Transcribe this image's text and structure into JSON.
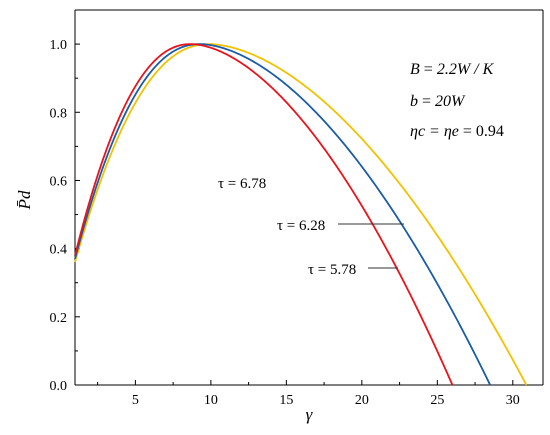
{
  "chart_data": {
    "type": "line",
    "xlabel": "γ",
    "ylabel": "P̄d",
    "xlim": [
      1,
      32
    ],
    "ylim": [
      0,
      1.1
    ],
    "x_ticks": [
      5,
      10,
      15,
      20,
      25,
      30
    ],
    "y_ticks": [
      0.0,
      0.2,
      0.4,
      0.6,
      0.8,
      1.0
    ],
    "x_tick_labels": [
      "5",
      "10",
      "15",
      "20",
      "25",
      "30"
    ],
    "y_tick_labels": [
      "0.0",
      "0.2",
      "0.4",
      "0.6",
      "0.8",
      "1.0"
    ],
    "grid": false,
    "parameters": [
      {
        "lhs": "B",
        "rhs": "2.2W / K"
      },
      {
        "lhs": "b",
        "rhs": "20W"
      },
      {
        "lhs": "ηc = ηe",
        "rhs": "0.94"
      }
    ],
    "series": [
      {
        "name": "τ = 5.78",
        "color": "#e8141c",
        "peak_x": 8.7,
        "zero_x": 26.0,
        "start_y": 0.38
      },
      {
        "name": "τ = 6.28",
        "color": "#1a5ca8",
        "peak_x": 9.3,
        "zero_x": 28.5,
        "start_y": 0.37
      },
      {
        "name": "τ = 6.78",
        "color": "#f2c200",
        "peak_x": 9.9,
        "zero_x": 30.9,
        "start_y": 0.36
      }
    ]
  }
}
